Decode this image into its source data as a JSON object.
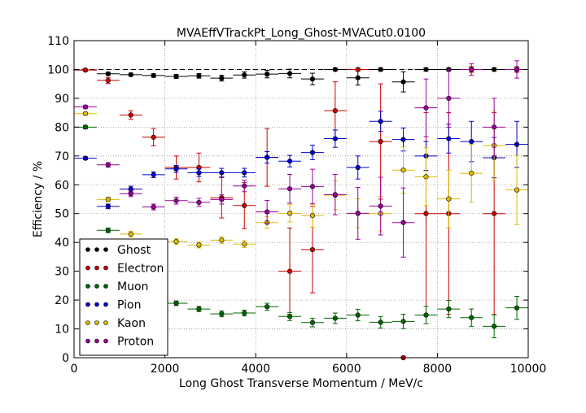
{
  "chart_data": {
    "type": "scatter",
    "title": "MVAEffVTrackPt_Long_Ghost-MVACut0.0100",
    "xlabel": "Long Ghost Transverse Momentum / MeV/c",
    "ylabel": "Efficiency / %",
    "xlim": [
      0,
      10000
    ],
    "ylim": [
      0,
      110
    ],
    "xticks": [
      0,
      2000,
      4000,
      6000,
      8000,
      10000
    ],
    "yticks": [
      0,
      10,
      20,
      30,
      40,
      50,
      60,
      70,
      80,
      90,
      100,
      110
    ],
    "grid": true,
    "legend_position": "lower-left",
    "reference_line": 100,
    "x": [
      250,
      750,
      1250,
      1750,
      2250,
      2750,
      3250,
      3750,
      4250,
      4750,
      5250,
      5750,
      6250,
      6750,
      7250,
      7750,
      8250,
      8750,
      9250,
      9750
    ],
    "x_halfwidth": 250,
    "series": [
      {
        "name": "Ghost",
        "color": "#000000",
        "values": [
          99.8,
          98.5,
          98.2,
          97.9,
          97.6,
          97.8,
          97.0,
          98.1,
          98.4,
          98.6,
          96.7,
          100,
          97.1,
          100,
          95.7,
          100,
          100,
          100,
          100,
          100
        ],
        "errors": [
          0.3,
          0.5,
          0.5,
          0.6,
          0.7,
          0.8,
          1.0,
          1.1,
          1.3,
          1.5,
          2.0,
          0.5,
          2.5,
          0.5,
          3.5,
          0.5,
          0.5,
          0.5,
          0.5,
          0.5
        ]
      },
      {
        "name": "Electron",
        "color": "#cc0000",
        "values": [
          99.8,
          96.2,
          84.2,
          76.5,
          66.0,
          66.0,
          55.5,
          52.8,
          69.5,
          30.0,
          37.5,
          85.7,
          100,
          75.0,
          0,
          50.0,
          50.0,
          100,
          50.0,
          100
        ],
        "errors": [
          0.3,
          1.0,
          1.5,
          3.0,
          4.0,
          5.0,
          7.0,
          8.0,
          10.0,
          15.0,
          15.0,
          10.0,
          0.5,
          20.0,
          0.5,
          35.0,
          35.0,
          1.0,
          35.0,
          1.0
        ]
      },
      {
        "name": "Muon",
        "color": "#006600",
        "values": [
          80.0,
          44.2,
          28.7,
          21.8,
          18.9,
          16.9,
          15.2,
          15.5,
          17.7,
          14.3,
          12.2,
          13.7,
          14.8,
          12.3,
          12.6,
          14.8,
          16.9,
          13.9,
          10.9,
          17.3
        ],
        "errors": [
          0.6,
          0.8,
          0.8,
          0.8,
          0.8,
          0.9,
          1.0,
          1.0,
          1.2,
          1.4,
          1.5,
          1.8,
          2.0,
          2.0,
          2.5,
          3.0,
          3.0,
          3.0,
          4.0,
          4.0
        ]
      },
      {
        "name": "Pion",
        "color": "#0000cc",
        "values": [
          69.2,
          52.5,
          58.5,
          63.5,
          65.5,
          64.2,
          64.2,
          64.2,
          69.5,
          68.2,
          71.2,
          76.0,
          66.0,
          82.0,
          75.7,
          70.0,
          76.0,
          75.0,
          69.4,
          74.0
        ],
        "errors": [
          0.5,
          0.8,
          1.0,
          1.0,
          1.2,
          1.3,
          1.5,
          1.5,
          2.0,
          2.0,
          2.5,
          3.0,
          4.0,
          3.5,
          4.0,
          5.0,
          5.0,
          7.0,
          7.0,
          8.0
        ]
      },
      {
        "name": "Kaon",
        "color": "#ddbb00",
        "values": [
          84.7,
          54.9,
          42.9,
          39.4,
          40.3,
          39.1,
          40.8,
          39.4,
          46.9,
          50.1,
          49.3,
          56.4,
          50.1,
          50.0,
          65.1,
          62.8,
          55.1,
          64.0,
          73.6,
          58.2
        ],
        "errors": [
          0.5,
          0.8,
          1.0,
          1.0,
          1.0,
          1.0,
          1.2,
          1.2,
          2.0,
          3.0,
          4.0,
          5.0,
          5.0,
          6.0,
          8.0,
          10.0,
          10.0,
          10.0,
          12.0,
          12.0
        ]
      },
      {
        "name": "Proton",
        "color": "#990099",
        "values": [
          87.0,
          66.9,
          56.9,
          52.3,
          54.5,
          53.9,
          54.9,
          59.6,
          50.6,
          58.6,
          59.4,
          56.6,
          50.1,
          52.6,
          46.9,
          86.7,
          90.0,
          100,
          80.0,
          100
        ],
        "errors": [
          0.5,
          0.8,
          1.0,
          1.0,
          1.2,
          1.4,
          1.6,
          2.0,
          4.0,
          5.0,
          6.0,
          7.0,
          9.0,
          10.0,
          12.0,
          10.0,
          10.0,
          2.0,
          10.0,
          3.0
        ]
      }
    ]
  }
}
